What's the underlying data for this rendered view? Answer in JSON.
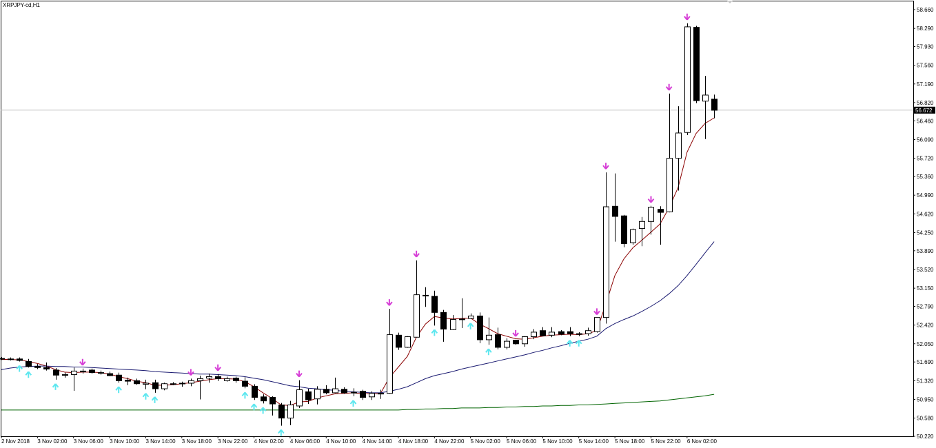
{
  "window": {
    "symbol_title": "XRPJPY-cd,H1"
  },
  "chart_data": {
    "type": "candlestick",
    "title": "XRPJPY-cd,H1",
    "ylim": [
      50.22,
      58.72
    ],
    "y_ticks": [
      "58.660",
      "58.290",
      "57.930",
      "57.560",
      "57.190",
      "56.820",
      "56.460",
      "56.090",
      "55.720",
      "55.360",
      "54.990",
      "54.620",
      "54.250",
      "53.890",
      "53.520",
      "53.150",
      "52.790",
      "52.420",
      "52.050",
      "51.690",
      "51.320",
      "50.950",
      "50.580",
      "50.220"
    ],
    "x_ticks": [
      "2 Nov 2018",
      "3 Nov 02:00",
      "3 Nov 06:00",
      "3 Nov 10:00",
      "3 Nov 14:00",
      "3 Nov 18:00",
      "3 Nov 22:00",
      "4 Nov 02:00",
      "4 Nov 06:00",
      "4 Nov 10:00",
      "4 Nov 14:00",
      "4 Nov 18:00",
      "4 Nov 22:00",
      "5 Nov 02:00",
      "5 Nov 06:00",
      "5 Nov 10:00",
      "5 Nov 14:00",
      "5 Nov 18:00",
      "5 Nov 22:00",
      "6 Nov 02:00"
    ],
    "current_price": "56.672",
    "candles": [
      {
        "o": 51.76,
        "h": 51.79,
        "l": 51.73,
        "c": 51.75
      },
      {
        "o": 51.75,
        "h": 51.78,
        "l": 51.72,
        "c": 51.74
      },
      {
        "o": 51.75,
        "h": 51.78,
        "l": 51.7,
        "c": 51.72
      },
      {
        "o": 51.7,
        "h": 51.75,
        "l": 51.58,
        "c": 51.6
      },
      {
        "o": 51.6,
        "h": 51.65,
        "l": 51.55,
        "c": 51.58
      },
      {
        "o": 51.58,
        "h": 51.68,
        "l": 51.52,
        "c": 51.55
      },
      {
        "o": 51.53,
        "h": 51.57,
        "l": 51.34,
        "c": 51.43
      },
      {
        "o": 51.43,
        "h": 51.48,
        "l": 51.38,
        "c": 51.44
      },
      {
        "o": 51.44,
        "h": 51.58,
        "l": 51.12,
        "c": 51.51
      },
      {
        "o": 51.5,
        "h": 51.56,
        "l": 51.46,
        "c": 51.51
      },
      {
        "o": 51.53,
        "h": 51.56,
        "l": 51.46,
        "c": 51.48
      },
      {
        "o": 51.48,
        "h": 51.52,
        "l": 51.44,
        "c": 51.47
      },
      {
        "o": 51.46,
        "h": 51.5,
        "l": 51.41,
        "c": 51.42
      },
      {
        "o": 51.43,
        "h": 51.48,
        "l": 51.28,
        "c": 51.32
      },
      {
        "o": 51.33,
        "h": 51.38,
        "l": 51.23,
        "c": 51.31
      },
      {
        "o": 51.32,
        "h": 51.36,
        "l": 51.24,
        "c": 51.26
      },
      {
        "o": 51.25,
        "h": 51.34,
        "l": 51.15,
        "c": 51.27
      },
      {
        "o": 51.28,
        "h": 51.34,
        "l": 51.08,
        "c": 51.16
      },
      {
        "o": 51.16,
        "h": 51.28,
        "l": 51.13,
        "c": 51.26
      },
      {
        "o": 51.26,
        "h": 51.29,
        "l": 51.23,
        "c": 51.26
      },
      {
        "o": 51.26,
        "h": 51.3,
        "l": 51.2,
        "c": 51.27
      },
      {
        "o": 51.27,
        "h": 51.36,
        "l": 51.21,
        "c": 51.32
      },
      {
        "o": 51.32,
        "h": 51.42,
        "l": 50.95,
        "c": 51.36
      },
      {
        "o": 51.37,
        "h": 51.46,
        "l": 51.28,
        "c": 51.4
      },
      {
        "o": 51.4,
        "h": 51.45,
        "l": 51.31,
        "c": 51.36
      },
      {
        "o": 51.32,
        "h": 51.4,
        "l": 51.3,
        "c": 51.36
      },
      {
        "o": 51.37,
        "h": 51.4,
        "l": 51.28,
        "c": 51.32
      },
      {
        "o": 51.31,
        "h": 51.39,
        "l": 51.17,
        "c": 51.21
      },
      {
        "o": 51.21,
        "h": 51.25,
        "l": 50.94,
        "c": 50.99
      },
      {
        "o": 51.0,
        "h": 51.05,
        "l": 50.87,
        "c": 50.92
      },
      {
        "o": 50.99,
        "h": 51.01,
        "l": 50.63,
        "c": 50.86
      },
      {
        "o": 50.84,
        "h": 50.88,
        "l": 50.43,
        "c": 50.58
      },
      {
        "o": 50.58,
        "h": 50.92,
        "l": 50.44,
        "c": 50.84
      },
      {
        "o": 50.82,
        "h": 51.33,
        "l": 50.78,
        "c": 51.14
      },
      {
        "o": 51.1,
        "h": 51.16,
        "l": 50.86,
        "c": 50.94
      },
      {
        "o": 50.96,
        "h": 51.21,
        "l": 50.85,
        "c": 51.15
      },
      {
        "o": 51.15,
        "h": 51.23,
        "l": 51.05,
        "c": 51.08
      },
      {
        "o": 51.08,
        "h": 51.38,
        "l": 51.07,
        "c": 51.16
      },
      {
        "o": 51.15,
        "h": 51.19,
        "l": 51.06,
        "c": 51.08
      },
      {
        "o": 51.08,
        "h": 51.17,
        "l": 51.01,
        "c": 51.09
      },
      {
        "o": 51.11,
        "h": 51.14,
        "l": 50.94,
        "c": 50.99
      },
      {
        "o": 51.0,
        "h": 51.11,
        "l": 50.94,
        "c": 51.07
      },
      {
        "o": 51.06,
        "h": 51.14,
        "l": 50.96,
        "c": 51.07
      },
      {
        "o": 51.07,
        "h": 52.74,
        "l": 51.06,
        "c": 52.23
      },
      {
        "o": 52.22,
        "h": 52.27,
        "l": 51.93,
        "c": 51.98
      },
      {
        "o": 51.98,
        "h": 52.2,
        "l": 51.97,
        "c": 52.19
      },
      {
        "o": 52.18,
        "h": 53.7,
        "l": 52.18,
        "c": 53.02
      },
      {
        "o": 53.01,
        "h": 53.17,
        "l": 52.78,
        "c": 53.01
      },
      {
        "o": 52.99,
        "h": 53.1,
        "l": 52.41,
        "c": 52.67
      },
      {
        "o": 52.67,
        "h": 52.72,
        "l": 52.09,
        "c": 52.34
      },
      {
        "o": 52.33,
        "h": 52.62,
        "l": 52.32,
        "c": 52.53
      },
      {
        "o": 52.53,
        "h": 52.95,
        "l": 52.36,
        "c": 52.54
      },
      {
        "o": 52.55,
        "h": 52.65,
        "l": 52.54,
        "c": 52.6
      },
      {
        "o": 52.6,
        "h": 52.67,
        "l": 52.06,
        "c": 52.13
      },
      {
        "o": 52.13,
        "h": 52.57,
        "l": 52.03,
        "c": 52.22
      },
      {
        "o": 52.23,
        "h": 52.37,
        "l": 51.94,
        "c": 51.98
      },
      {
        "o": 51.98,
        "h": 52.16,
        "l": 51.94,
        "c": 52.1
      },
      {
        "o": 52.12,
        "h": 52.13,
        "l": 52.03,
        "c": 52.05
      },
      {
        "o": 52.05,
        "h": 52.2,
        "l": 51.99,
        "c": 52.19
      },
      {
        "o": 52.19,
        "h": 52.34,
        "l": 52.14,
        "c": 52.28
      },
      {
        "o": 52.31,
        "h": 52.38,
        "l": 52.2,
        "c": 52.21
      },
      {
        "o": 52.22,
        "h": 52.38,
        "l": 52.18,
        "c": 52.28
      },
      {
        "o": 52.29,
        "h": 52.32,
        "l": 52.22,
        "c": 52.24
      },
      {
        "o": 52.29,
        "h": 52.38,
        "l": 52.2,
        "c": 52.25
      },
      {
        "o": 52.24,
        "h": 52.28,
        "l": 52.2,
        "c": 52.25
      },
      {
        "o": 52.25,
        "h": 52.37,
        "l": 52.21,
        "c": 52.31
      },
      {
        "o": 52.29,
        "h": 52.56,
        "l": 52.27,
        "c": 52.57
      },
      {
        "o": 52.57,
        "h": 55.44,
        "l": 52.45,
        "c": 54.76
      },
      {
        "o": 54.77,
        "h": 55.42,
        "l": 54.07,
        "c": 54.57
      },
      {
        "o": 54.58,
        "h": 54.6,
        "l": 53.96,
        "c": 54.03
      },
      {
        "o": 54.05,
        "h": 54.33,
        "l": 54.01,
        "c": 54.31
      },
      {
        "o": 54.33,
        "h": 54.56,
        "l": 53.98,
        "c": 54.47
      },
      {
        "o": 54.47,
        "h": 54.78,
        "l": 54.21,
        "c": 54.75
      },
      {
        "o": 54.71,
        "h": 54.77,
        "l": 54.01,
        "c": 54.65
      },
      {
        "o": 54.66,
        "h": 57.0,
        "l": 54.65,
        "c": 55.72
      },
      {
        "o": 55.72,
        "h": 56.75,
        "l": 55.08,
        "c": 56.22
      },
      {
        "o": 56.23,
        "h": 58.39,
        "l": 56.18,
        "c": 58.32
      },
      {
        "o": 58.31,
        "h": 58.34,
        "l": 56.81,
        "c": 56.86
      },
      {
        "o": 56.85,
        "h": 57.35,
        "l": 56.1,
        "c": 56.97
      },
      {
        "o": 56.89,
        "h": 56.98,
        "l": 56.51,
        "c": 56.67
      }
    ],
    "series": [
      {
        "color": "#8b0000",
        "values": [
          51.74,
          51.74,
          51.73,
          51.7,
          51.66,
          51.61,
          51.54,
          51.49,
          51.48,
          51.49,
          51.49,
          51.48,
          51.45,
          51.4,
          51.36,
          51.31,
          51.28,
          51.23,
          51.23,
          51.24,
          51.26,
          51.28,
          51.31,
          51.34,
          51.36,
          51.36,
          51.35,
          51.3,
          51.2,
          51.08,
          50.97,
          50.84,
          50.83,
          50.9,
          50.91,
          50.98,
          51.02,
          51.06,
          51.07,
          51.08,
          51.06,
          51.06,
          51.06,
          51.38,
          51.59,
          51.8,
          52.18,
          52.44,
          52.59,
          52.56,
          52.54,
          52.55,
          52.56,
          52.44,
          52.35,
          52.25,
          52.2,
          52.15,
          52.14,
          52.17,
          52.2,
          52.22,
          52.23,
          52.24,
          52.23,
          52.25,
          52.31,
          52.84,
          53.4,
          53.73,
          53.95,
          54.1,
          54.26,
          54.42,
          54.74,
          55.14,
          55.84,
          56.21,
          56.41,
          56.52
        ]
      },
      {
        "color": "#191970",
        "values": [
          51.54,
          51.57,
          51.59,
          51.6,
          51.61,
          51.61,
          51.6,
          51.6,
          51.59,
          51.59,
          51.58,
          51.57,
          51.56,
          51.55,
          51.54,
          51.53,
          51.52,
          51.5,
          51.49,
          51.48,
          51.47,
          51.46,
          51.45,
          51.45,
          51.44,
          51.43,
          51.42,
          51.4,
          51.37,
          51.34,
          51.3,
          51.26,
          51.22,
          51.2,
          51.17,
          51.16,
          51.14,
          51.13,
          51.11,
          51.1,
          51.09,
          51.08,
          51.08,
          51.11,
          51.15,
          51.2,
          51.28,
          51.36,
          51.42,
          51.46,
          51.5,
          51.55,
          51.59,
          51.63,
          51.67,
          51.71,
          51.75,
          51.79,
          51.83,
          51.88,
          51.92,
          51.97,
          52.01,
          52.06,
          52.1,
          52.14,
          52.2,
          52.35,
          52.45,
          52.53,
          52.6,
          52.69,
          52.79,
          52.9,
          53.04,
          53.2,
          53.4,
          53.62,
          53.85,
          54.07
        ]
      },
      {
        "color": "#006400",
        "values": [
          50.74,
          50.74,
          50.74,
          50.74,
          50.74,
          50.74,
          50.74,
          50.74,
          50.74,
          50.74,
          50.74,
          50.74,
          50.74,
          50.74,
          50.74,
          50.74,
          50.74,
          50.74,
          50.74,
          50.74,
          50.74,
          50.74,
          50.74,
          50.74,
          50.74,
          50.74,
          50.74,
          50.74,
          50.74,
          50.74,
          50.74,
          50.74,
          50.74,
          50.74,
          50.74,
          50.74,
          50.74,
          50.74,
          50.74,
          50.74,
          50.74,
          50.74,
          50.74,
          50.74,
          50.74,
          50.75,
          50.75,
          50.76,
          50.76,
          50.77,
          50.77,
          50.78,
          50.78,
          50.78,
          50.79,
          50.79,
          50.8,
          50.8,
          50.81,
          50.81,
          50.82,
          50.82,
          50.83,
          50.83,
          50.84,
          50.84,
          50.85,
          50.86,
          50.87,
          50.88,
          50.89,
          50.9,
          50.91,
          50.92,
          50.94,
          50.96,
          50.98,
          51.0,
          51.02,
          51.05
        ]
      }
    ],
    "signals_down": [
      9,
      21,
      24,
      33,
      43,
      46,
      57,
      66,
      67,
      72,
      74,
      76
    ],
    "signals_up": [
      2,
      3,
      6,
      13,
      16,
      17,
      27,
      28,
      29,
      31,
      39,
      48,
      52,
      54,
      63,
      64
    ],
    "colors": {
      "up_signal": "#5ee7ef",
      "down_signal": "#d63fd6",
      "axis": "#000000",
      "price_line": "#c0c0c0"
    }
  }
}
